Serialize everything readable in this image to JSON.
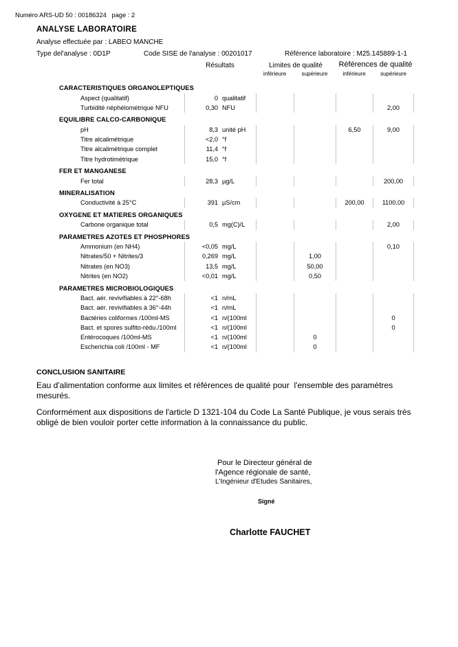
{
  "page": {
    "doc_number_line": "Numéro ARS-UD 50 : 00186324   page : 2"
  },
  "header": {
    "title": "ANALYSE LABORATOIRE",
    "performed_by": "Analyse effectuée par : LABEO MANCHE",
    "analysis_type": "Type del'analyse : 0D1P",
    "sise_code": "Code SISE de l'analyse : 00201017",
    "lab_reference": "Référence laboratoire : M25.145889-1-1"
  },
  "table": {
    "columns": {
      "results": "Résultats",
      "limits": "Limites de qualité",
      "references": "Références de qualité",
      "lower": "inférieure",
      "upper": "supérieure"
    },
    "sections": [
      {
        "title": "CARACTERISTIQUES ORGANOLEPTIQUES",
        "rows": [
          {
            "name": "Aspect (qualitatif)",
            "value": "0",
            "unit": "qualitatif",
            "lim_inf": "",
            "lim_sup": "",
            "ref_inf": "",
            "ref_sup": ""
          },
          {
            "name": "Turbidité néphélométrique NFU",
            "value": "0,30",
            "unit": "NFU",
            "lim_inf": "",
            "lim_sup": "",
            "ref_inf": "",
            "ref_sup": "2,00"
          }
        ]
      },
      {
        "title": "EQUILIBRE CALCO-CARBONIQUE",
        "rows": [
          {
            "name": "pH",
            "value": "8,3",
            "unit": "unité pH",
            "lim_inf": "",
            "lim_sup": "",
            "ref_inf": "6,50",
            "ref_sup": "9,00"
          },
          {
            "name": "Titre alcalimétrique",
            "value": "<2,0",
            "unit": "°f",
            "lim_inf": "",
            "lim_sup": "",
            "ref_inf": "",
            "ref_sup": ""
          },
          {
            "name": "Titre alcalimétrique complet",
            "value": "11,4",
            "unit": "°f",
            "lim_inf": "",
            "lim_sup": "",
            "ref_inf": "",
            "ref_sup": ""
          },
          {
            "name": "Titre hydrotimétrique",
            "value": "15,0",
            "unit": "°f",
            "lim_inf": "",
            "lim_sup": "",
            "ref_inf": "",
            "ref_sup": ""
          }
        ]
      },
      {
        "title": "FER ET MANGANESE",
        "rows": [
          {
            "name": "Fer total",
            "value": "28,3",
            "unit": "µg/L",
            "lim_inf": "",
            "lim_sup": "",
            "ref_inf": "",
            "ref_sup": "200,00"
          }
        ]
      },
      {
        "title": "MINERALISATION",
        "rows": [
          {
            "name": "Conductivité à 25°C",
            "value": "391",
            "unit": "µS/cm",
            "lim_inf": "",
            "lim_sup": "",
            "ref_inf": "200,00",
            "ref_sup": "1100,00"
          }
        ]
      },
      {
        "title": "OXYGENE ET MATIERES ORGANIQUES",
        "rows": [
          {
            "name": "Carbone organique total",
            "value": "0,5",
            "unit": "mg(C)/L",
            "lim_inf": "",
            "lim_sup": "",
            "ref_inf": "",
            "ref_sup": "2,00"
          }
        ]
      },
      {
        "title": "PARAMETRES AZOTES ET PHOSPHORES",
        "rows": [
          {
            "name": "Ammonium (en NH4)",
            "value": "<0,05",
            "unit": "mg/L",
            "lim_inf": "",
            "lim_sup": "",
            "ref_inf": "",
            "ref_sup": "0,10"
          },
          {
            "name": "Nitrates/50 + Nitrites/3",
            "value": "0,269",
            "unit": "mg/L",
            "lim_inf": "",
            "lim_sup": "1,00",
            "ref_inf": "",
            "ref_sup": ""
          },
          {
            "name": "Nitrates (en NO3)",
            "value": "13,5",
            "unit": "mg/L",
            "lim_inf": "",
            "lim_sup": "50,00",
            "ref_inf": "",
            "ref_sup": ""
          },
          {
            "name": "Nitrites (en NO2)",
            "value": "<0,01",
            "unit": "mg/L",
            "lim_inf": "",
            "lim_sup": "0,50",
            "ref_inf": "",
            "ref_sup": ""
          }
        ]
      },
      {
        "title": "PARAMETRES MICROBIOLOGIQUES",
        "rows": [
          {
            "name": "Bact. aér. revivifiables à 22°-68h",
            "value": "<1",
            "unit": "n/mL",
            "lim_inf": "",
            "lim_sup": "",
            "ref_inf": "",
            "ref_sup": ""
          },
          {
            "name": "Bact. aér. revivifiables à 36°-44h",
            "value": "<1",
            "unit": "n/mL",
            "lim_inf": "",
            "lim_sup": "",
            "ref_inf": "",
            "ref_sup": ""
          },
          {
            "name": "Bactéries coliformes /100ml-MS",
            "value": "<1",
            "unit": "n/(100ml",
            "lim_inf": "",
            "lim_sup": "",
            "ref_inf": "",
            "ref_sup": "0"
          },
          {
            "name": "Bact. et spores sulfito-rédu./100ml",
            "value": "<1",
            "unit": "n/(100ml",
            "lim_inf": "",
            "lim_sup": "",
            "ref_inf": "",
            "ref_sup": "0"
          },
          {
            "name": "Entérocoques /100ml-MS",
            "value": "<1",
            "unit": "n/(100ml",
            "lim_inf": "",
            "lim_sup": "0",
            "ref_inf": "",
            "ref_sup": ""
          },
          {
            "name": "Escherichia coli /100ml - MF",
            "value": "<1",
            "unit": "n/(100ml",
            "lim_inf": "",
            "lim_sup": "0",
            "ref_inf": "",
            "ref_sup": ""
          }
        ]
      }
    ]
  },
  "conclusion": {
    "title": "CONCLUSION SANITAIRE",
    "paragraph1": "Eau d'alimentation conforme aux limites et références de qualité pour  l'ensemble des paramètres mesurés.",
    "paragraph2": "Conformément aux dispositions de l'article D 1321-104 du Code La Santé Publique, je vous serais très obligé de bien vouloir porter cette information à la connaissance du public."
  },
  "signature": {
    "line1": "Pour le Directeur général de",
    "line2": "l'Agence régionale de santé,",
    "line3": "L'Ingénieur d'Etudes Sanitaires,",
    "signed_label": "Signé",
    "name": "Charlotte FAUCHET"
  },
  "colors": {
    "background": "#ffffff",
    "text": "#000000",
    "divider": "#c6c6c6"
  }
}
